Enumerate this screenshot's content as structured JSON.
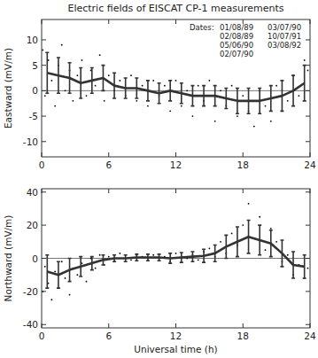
{
  "chart_data": [
    {
      "type": "scatter",
      "title": "Electric fields of EISCAT CP-1 measurements",
      "y_label": "Eastward (mV/m)",
      "xlim": [
        0,
        24
      ],
      "xticks": [
        0,
        6,
        12,
        18,
        24
      ],
      "ylim": [
        -13,
        14
      ],
      "yticks": [
        -10,
        -5,
        0,
        5,
        10
      ],
      "hlines": [
        0
      ],
      "dates_label": "Dates:",
      "dates": [
        "01/08/89",
        "02/08/89",
        "05/06/90",
        "02/07/90",
        "03/07/90",
        "10/07/91",
        "03/08/92"
      ],
      "series": [
        {
          "type": "scatter",
          "color": "#000000",
          "marker": "dot",
          "x": [
            0.1,
            0.3,
            0.6,
            0.9,
            1.2,
            1.5,
            1.8,
            2.1,
            2.5,
            2.8,
            3.2,
            3.6,
            4.0,
            4.4,
            4.8,
            5.2,
            5.6,
            6.0,
            6.5,
            7.0,
            7.5,
            8.0,
            8.5,
            9.0,
            9.5,
            10.0,
            10.5,
            11.0,
            11.5,
            12.0,
            12.5,
            13.0,
            13.5,
            14.0,
            14.5,
            15.0,
            15.5,
            16.0,
            16.5,
            17.0,
            17.5,
            18.0,
            18.5,
            19.0,
            19.5,
            20.0,
            20.5,
            21.0,
            21.5,
            22.0,
            22.5,
            23.0,
            23.5,
            23.8
          ],
          "values": [
            8,
            -1,
            6,
            2,
            -3,
            5,
            9,
            0,
            4,
            -2,
            3,
            6,
            -1,
            4,
            1,
            7,
            -2,
            3,
            0,
            2,
            -1,
            3,
            -2,
            1,
            -3,
            2,
            -1,
            1,
            -4,
            2,
            -3,
            0,
            -5,
            1,
            -2,
            2,
            -6,
            0,
            -3,
            1,
            -5,
            -1,
            -4,
            -7,
            0,
            -3,
            -6,
            1,
            -4,
            -2,
            3,
            -1,
            6,
            4
          ]
        },
        {
          "type": "line",
          "color": "#333333",
          "x": [
            0.5,
            1.5,
            2.5,
            3.5,
            4.5,
            5.5,
            6.5,
            7.5,
            8.5,
            9.5,
            10.5,
            11.5,
            12.5,
            13.5,
            14.5,
            15.5,
            16.5,
            17.5,
            18.5,
            19.5,
            20.5,
            21.5,
            22.5,
            23.5
          ],
          "values": [
            3.5,
            3,
            2.5,
            1.5,
            2,
            2.5,
            1,
            0.5,
            0.5,
            0,
            -0.5,
            0,
            -0.5,
            -1,
            -1,
            -1,
            -1.5,
            -2,
            -2,
            -2,
            -1.5,
            -1,
            0,
            1.5
          ],
          "errors": [
            4,
            3.5,
            3,
            3,
            2.5,
            2.5,
            2.5,
            2,
            2,
            2,
            2,
            2,
            2,
            2,
            2,
            2,
            2,
            2.5,
            2.5,
            2.5,
            2.5,
            3,
            3,
            3.5
          ]
        }
      ]
    },
    {
      "type": "scatter",
      "y_label": "Northward (mV/m)",
      "x_label": "Universal time (h)",
      "xlim": [
        0,
        24
      ],
      "xticks": [
        0,
        6,
        12,
        18,
        24
      ],
      "ylim": [
        -42,
        42
      ],
      "yticks": [
        -40,
        -20,
        0,
        20,
        40
      ],
      "hlines": [
        0
      ],
      "series": [
        {
          "type": "scatter",
          "color": "#000000",
          "marker": "dot",
          "x": [
            0.1,
            0.3,
            0.6,
            0.9,
            1.2,
            1.5,
            1.8,
            2.1,
            2.5,
            2.8,
            3.2,
            3.6,
            4.0,
            4.4,
            4.8,
            5.2,
            5.6,
            6.0,
            6.5,
            7.0,
            7.5,
            8.0,
            8.5,
            9.0,
            9.5,
            10.0,
            10.5,
            11.0,
            11.5,
            12.0,
            12.5,
            13.0,
            13.5,
            14.0,
            14.5,
            15.0,
            15.5,
            16.0,
            16.5,
            17.0,
            17.5,
            18.0,
            18.5,
            19.0,
            19.5,
            20.0,
            20.5,
            21.0,
            21.5,
            22.0,
            22.5,
            23.0,
            23.5,
            23.8
          ],
          "values": [
            -20,
            -5,
            -15,
            -25,
            -8,
            -18,
            -2,
            -12,
            -22,
            -6,
            -10,
            -3,
            -14,
            0,
            -6,
            2,
            -4,
            1,
            -2,
            3,
            0,
            -1,
            2,
            1,
            -1,
            2,
            0,
            1,
            -2,
            3,
            1,
            0,
            2,
            -1,
            4,
            6,
            1,
            10,
            3,
            15,
            8,
            20,
            33,
            12,
            25,
            5,
            18,
            10,
            -2,
            2,
            -10,
            -4,
            -12,
            -6
          ]
        },
        {
          "type": "line",
          "color": "#333333",
          "x": [
            0.5,
            1.5,
            2.5,
            3.5,
            4.5,
            5.5,
            6.5,
            7.5,
            8.5,
            9.5,
            10.5,
            11.5,
            12.5,
            13.5,
            14.5,
            15.5,
            16.5,
            17.5,
            18.5,
            19.5,
            20.5,
            21.5,
            22.5,
            23.5
          ],
          "values": [
            -8,
            -10,
            -7,
            -5,
            -3,
            -1,
            0,
            0,
            0.5,
            0.5,
            0.5,
            0,
            0.5,
            1,
            1.5,
            3,
            7,
            10,
            13,
            11,
            9,
            3,
            -4,
            -5
          ],
          "errors": [
            10,
            8,
            7,
            6,
            4,
            3,
            2,
            2,
            2,
            2,
            2,
            3,
            3,
            3,
            4,
            5,
            7,
            9,
            10,
            9,
            8,
            8,
            8,
            7
          ]
        }
      ]
    }
  ]
}
